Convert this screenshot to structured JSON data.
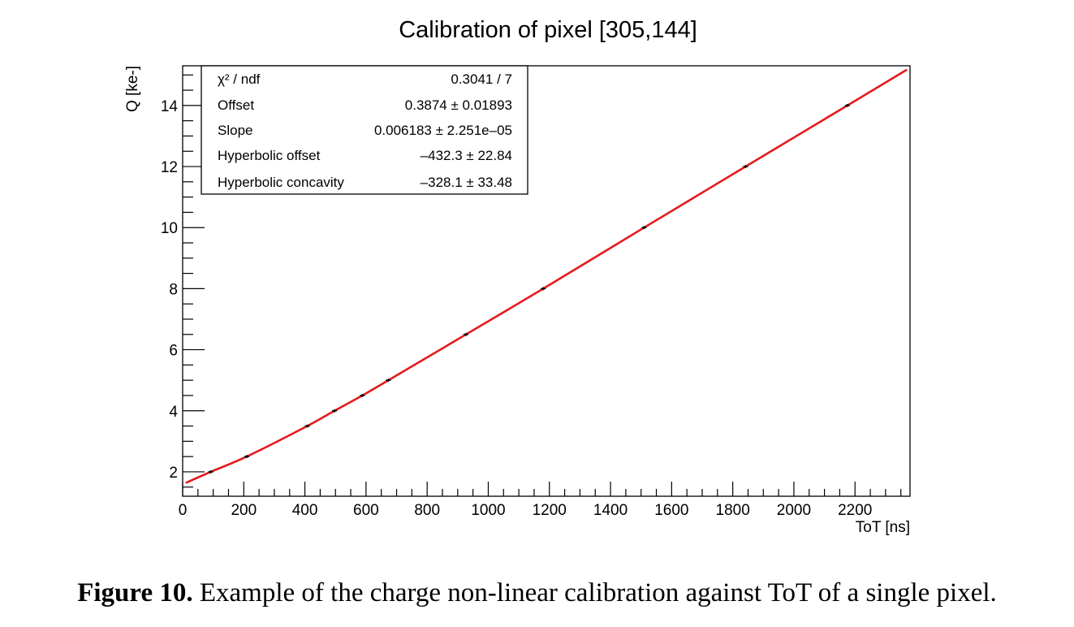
{
  "chart_data": {
    "type": "scatter",
    "title": "Calibration of pixel [305,144]",
    "xlabel": "ToT [ns]",
    "ylabel": "Q [ke-]",
    "xlim": [
      0,
      2380
    ],
    "ylim": [
      1.2,
      15.3
    ],
    "x_ticks": [
      0,
      200,
      400,
      600,
      800,
      1000,
      1200,
      1400,
      1600,
      1800,
      2000,
      2200
    ],
    "y_ticks": [
      2,
      4,
      6,
      8,
      10,
      12,
      14
    ],
    "grid": false,
    "series": [
      {
        "kind": "points_with_error_bars",
        "color": "#000000",
        "x": [
          92,
          210,
          408,
          497,
          588,
          673,
          927,
          1180,
          1510,
          1842,
          2175
        ],
        "y": [
          2.0,
          2.5,
          3.5,
          4.0,
          4.5,
          5.0,
          6.5,
          8.0,
          10.0,
          12.0,
          14.0
        ],
        "y_err": 0.05
      },
      {
        "kind": "fit_curve",
        "color": "#e41a1c",
        "x_range": [
          10,
          2370
        ],
        "model": "hyperbolic"
      }
    ],
    "stats_box": {
      "position": "top-left",
      "rows": [
        {
          "label": "χ² / ndf",
          "value": "0.3041 / 7"
        },
        {
          "label": "Offset",
          "value": "0.3874 ± 0.01893"
        },
        {
          "label": "Slope",
          "value": "0.006183 ± 2.251e–05"
        },
        {
          "label": "Hyperbolic offset",
          "value": "–432.3 ± 22.84"
        },
        {
          "label": "Hyperbolic concavity",
          "value": "–328.1 ± 33.48"
        }
      ]
    }
  },
  "caption": {
    "label": "Figure 10.",
    "text": "Example of the charge non-linear calibration against ToT of a single pixel."
  }
}
